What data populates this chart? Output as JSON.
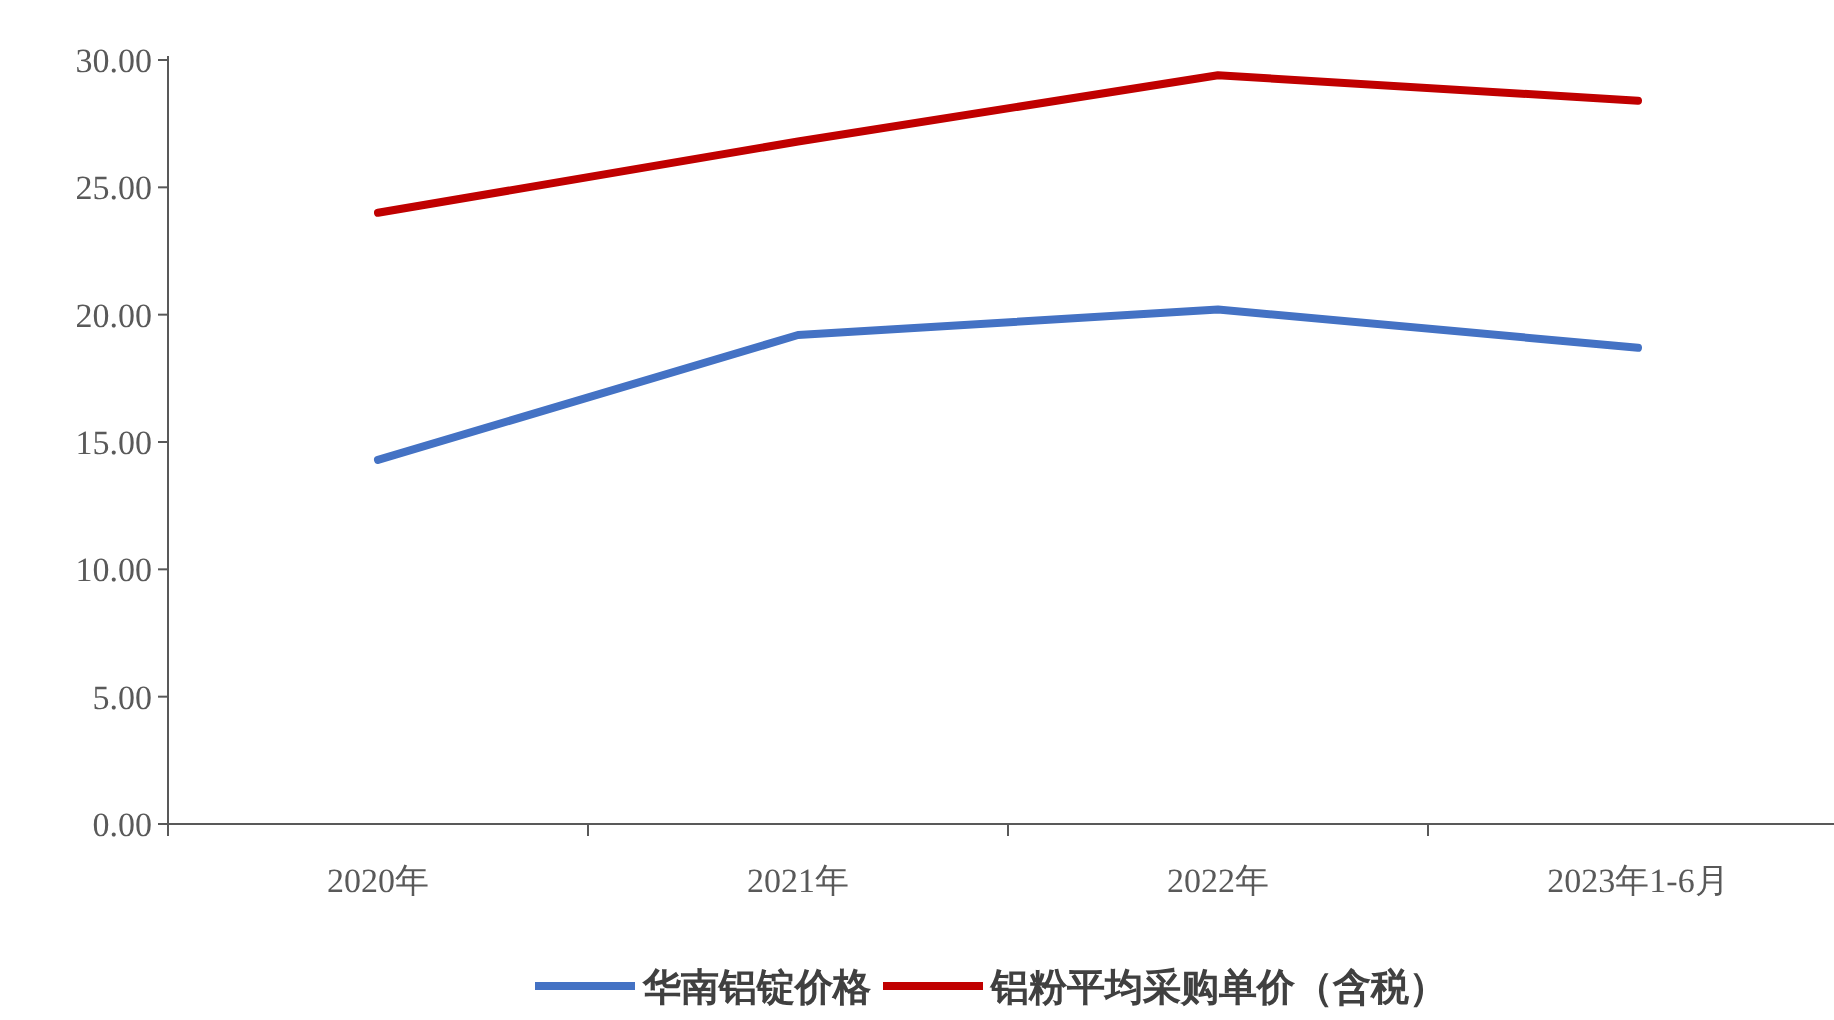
{
  "chart_data": {
    "type": "line",
    "categories": [
      "2020年",
      "2021年",
      "2022年",
      "2023年1-6月"
    ],
    "series": [
      {
        "name": "华南铝锭价格",
        "color": "#4472c4",
        "values": [
          14.3,
          19.2,
          20.2,
          18.7
        ]
      },
      {
        "name": "铝粉平均采购单价（含税）",
        "color": "#c00000",
        "values": [
          24.0,
          26.8,
          29.4,
          28.4
        ]
      }
    ],
    "ylim": [
      0,
      30
    ],
    "yticks": [
      {
        "value": 0,
        "label": "0.00"
      },
      {
        "value": 5,
        "label": "5.00"
      },
      {
        "value": 10,
        "label": "10.00"
      },
      {
        "value": 15,
        "label": "15.00"
      },
      {
        "value": 20,
        "label": "20.00"
      },
      {
        "value": 25,
        "label": "25.00"
      },
      {
        "value": 30,
        "label": "30.00"
      }
    ],
    "grid": false,
    "legend": "bottom",
    "marker": "none",
    "line_style": "solid"
  }
}
